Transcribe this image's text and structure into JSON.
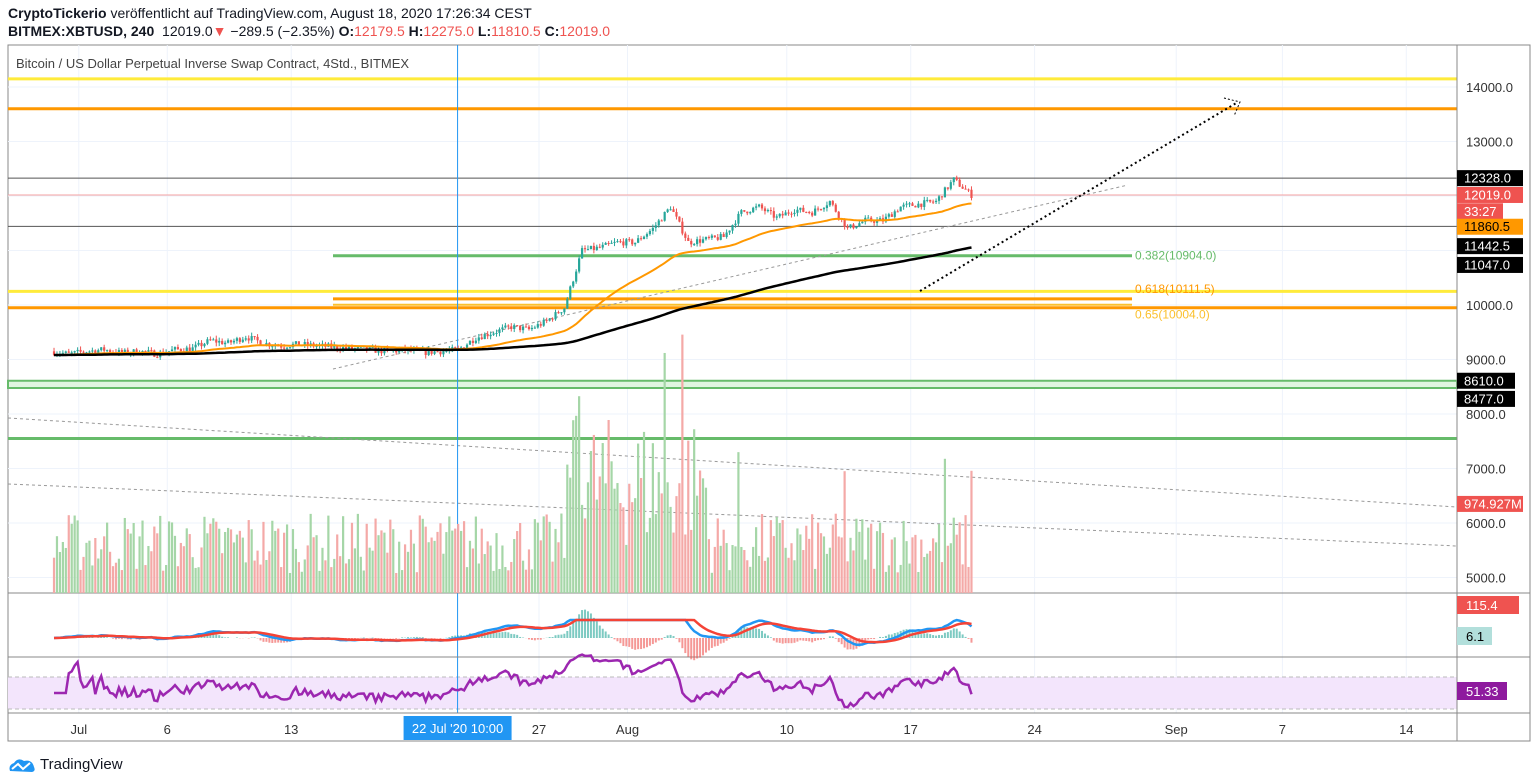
{
  "header": {
    "author": "CryptoTickerio",
    "published": "veröffentlicht auf TradingView.com, August 18, 2020 17:26:34 CEST",
    "symbol": "BITMEX:XBTUSD, 240",
    "last": "12019.0",
    "change": "−289.5 (−2.35%)",
    "o_label": "O:",
    "o": "12179.5",
    "h_label": "H:",
    "h": "12275.0",
    "l_label": "L:",
    "l": "11810.5",
    "c_label": "C:",
    "c": "12019.0"
  },
  "footer": {
    "brand": "TradingView"
  },
  "chart_data": {
    "type": "candlestick",
    "title": "Bitcoin / US Dollar Perpetual Inverse Swap Contract, 4Std., BITMEX",
    "timeframe": "4h",
    "start_date": "2020-06-27",
    "daily_close": [
      9150,
      9100,
      9150,
      9180,
      9120,
      9150,
      9100,
      9180,
      9200,
      9350,
      9300,
      9420,
      9300,
      9250,
      9280,
      9250,
      9230,
      9200,
      9180,
      9150,
      9170,
      9130,
      9150,
      9180,
      9400,
      9500,
      9600,
      9550,
      9700,
      9950,
      11000,
      11050,
      11150,
      11150,
      11400,
      11800,
      11150,
      11200,
      11250,
      11700,
      11800,
      11600,
      11750,
      11700,
      11900,
      11400,
      11550,
      11550,
      11800,
      11850,
      11900,
      12300,
      12019
    ],
    "ylim": [
      4700,
      14500
    ],
    "y_ticks": [
      "14000.0",
      "13000.0",
      "10000.0",
      "9000.0",
      "8000.0",
      "7000.0",
      "6000.0",
      "5000.0"
    ],
    "x_ticks": [
      {
        "label": "Jul",
        "day": 4
      },
      {
        "label": "6",
        "day": 9
      },
      {
        "label": "13",
        "day": 16
      },
      {
        "label": "27",
        "day": 30
      },
      {
        "label": "Aug",
        "day": 35
      },
      {
        "label": "10",
        "day": 44
      },
      {
        "label": "17",
        "day": 51
      },
      {
        "label": "24",
        "day": 58
      },
      {
        "label": "Sep",
        "day": 66
      },
      {
        "label": "7",
        "day": 72
      },
      {
        "label": "14",
        "day": 79
      }
    ],
    "crosshair": {
      "label": "22 Jul '20   10:00",
      "day": 25.4
    },
    "price_labels": [
      {
        "text": "12328.0",
        "price": 12328,
        "bg": "#000000"
      },
      {
        "text": "12019.0",
        "price": 12019,
        "bg": "#ef5350"
      },
      {
        "text": "33:27",
        "price": 11720,
        "bg": "#ef5350"
      },
      {
        "text": "11860.5",
        "price": 11436,
        "bg": "#ff9800",
        "fg": "#000000"
      },
      {
        "text": "11442.5",
        "price": 11080,
        "bg": "#000000"
      },
      {
        "text": "11047.0",
        "price": 10735,
        "bg": "#000000"
      },
      {
        "text": "8610.0",
        "price": 8610,
        "bg": "#000000"
      },
      {
        "text": "8477.0",
        "price": 8277,
        "bg": "#000000"
      },
      {
        "text": "974.927M",
        "price": 6350,
        "bg": "#ef5350"
      }
    ],
    "fib_labels": [
      {
        "text": "0.382(10904.0)",
        "price": 10904,
        "color": "#66bb6a"
      },
      {
        "text": "0.618(10111.5)",
        "price": 10150,
        "color": "#ff9800"
      },
      {
        "text": "0.65(10004.0)",
        "price": 10050,
        "color": "#fbc02d"
      }
    ],
    "levels": [
      {
        "price": 14150,
        "color": "#ffeb3b"
      },
      {
        "price": 13600,
        "color": "#ff9800"
      },
      {
        "price": 12328,
        "color": "#555555"
      },
      {
        "price": 12019,
        "color": "#f4a0a0"
      },
      {
        "price": 11442.5,
        "color": "#555555"
      },
      {
        "price": 10250,
        "color": "#ffeb3b"
      },
      {
        "price": 9950,
        "color": "#ff9800"
      },
      {
        "price": 7550,
        "color": "#66bb6a"
      }
    ],
    "macd": {
      "macd_label": "115.4",
      "hist_label": "6.1"
    },
    "rsi": {
      "label": "51.33"
    },
    "colors": {
      "up": "#26a69a",
      "down": "#ef5350",
      "ema": "#ff9800",
      "ma": "#000000",
      "rsi": "#9c27b0"
    }
  }
}
